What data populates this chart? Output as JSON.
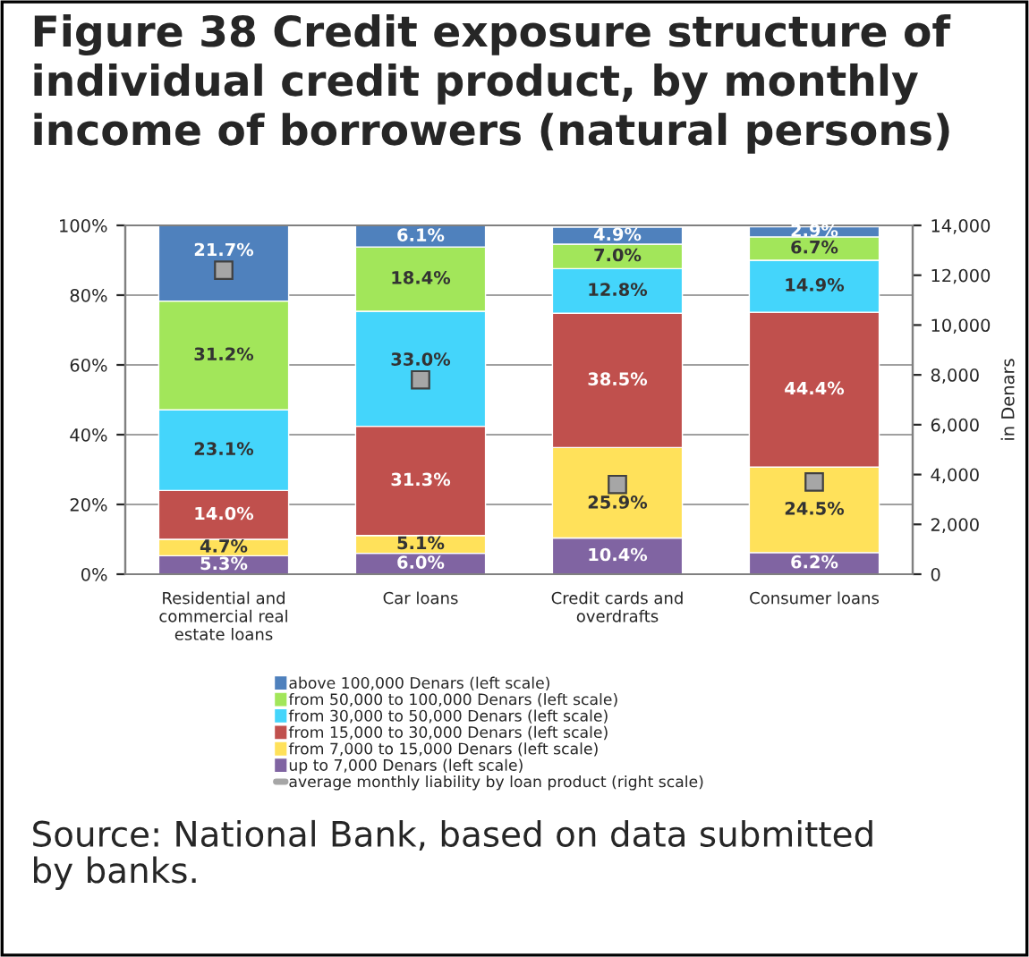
{
  "chart_data": {
    "type": "bar",
    "stacked": true,
    "grid": "y",
    "legend": "bottom",
    "title": "Figure 38 Credit exposure structure of\nindividual credit product, by monthly\nincome of borrowers (natural persons)",
    "y2label": "in Denars",
    "annotations": [
      "Source: National Bank, based on data submitted\nby banks."
    ],
    "categories": [
      "Residential and\ncommercial real\nestate loans",
      "Car loans",
      "Credit cards and\noverdrafts",
      "Consumer loans"
    ],
    "ylim": [
      0,
      100
    ],
    "yticks": [
      {
        "value": 0,
        "label": "0%"
      },
      {
        "value": 20,
        "label": "20%"
      },
      {
        "value": 40,
        "label": "40%"
      },
      {
        "value": 60,
        "label": "60%"
      },
      {
        "value": 80,
        "label": "80%"
      },
      {
        "value": 100,
        "label": "100%"
      }
    ],
    "y2lim": [
      0,
      14000
    ],
    "y2ticks": [
      0,
      {
        "value": 2000,
        "label": "2,000"
      },
      {
        "value": 4000,
        "label": "4,000"
      },
      {
        "value": 6000,
        "label": "6,000"
      },
      {
        "value": 8000,
        "label": "8,000"
      },
      {
        "value": 10000,
        "label": "10,000"
      },
      {
        "value": 12000,
        "label": "12,000"
      },
      {
        "value": 14000,
        "label": "14,000"
      }
    ],
    "series": [
      {
        "name": "up to 7,000 Denars (left scale)",
        "color": "#8064a2",
        "values": [
          5.3,
          6.0,
          10.4,
          6.2
        ],
        "value_labels": [
          "5.3%",
          "6.0%",
          "10.4%",
          "6.2%"
        ]
      },
      {
        "name": "from 7,000 to 15,000 Denars (left scale)",
        "color": "#ffe15a",
        "values": [
          4.7,
          5.1,
          25.9,
          24.5
        ],
        "value_labels": [
          "4.7%",
          "5.1%",
          "25.9%",
          "24.5%"
        ]
      },
      {
        "name": "from 15,000 to 30,000 Denars (left scale)",
        "color": "#c0504d",
        "values": [
          14.0,
          31.3,
          38.5,
          44.4
        ],
        "value_labels": [
          "14.0%",
          "31.3%",
          "38.5%",
          "44.4%"
        ]
      },
      {
        "name": "from 30,000 to 50,000 Denars (left scale)",
        "color": "#44d5fb",
        "values": [
          23.1,
          33.0,
          12.8,
          14.9
        ],
        "value_labels": [
          "23.1%",
          "33.0%",
          "12.8%",
          "14.9%"
        ]
      },
      {
        "name": "from 50,000 to 100,000 Denars (left scale)",
        "color": "#a2e65a",
        "values": [
          31.2,
          18.4,
          7.0,
          6.7
        ],
        "value_labels": [
          "31.2%",
          "18.4%",
          "7.0%",
          "6.7%"
        ]
      },
      {
        "name": "above 100,000 Denars (left scale)",
        "color": "#4f81bd",
        "values": [
          21.7,
          6.1,
          4.9,
          2.9
        ],
        "value_labels": [
          "21.7%",
          "6.1%",
          "4.9%",
          "2.9%"
        ]
      },
      {
        "name": "average monthly liability by loan product (right scale)",
        "type": "scatter",
        "axis": "y2",
        "marker": "square",
        "color": "#a6a6a6",
        "values": [
          12200,
          7800,
          3600,
          3700
        ]
      }
    ]
  }
}
